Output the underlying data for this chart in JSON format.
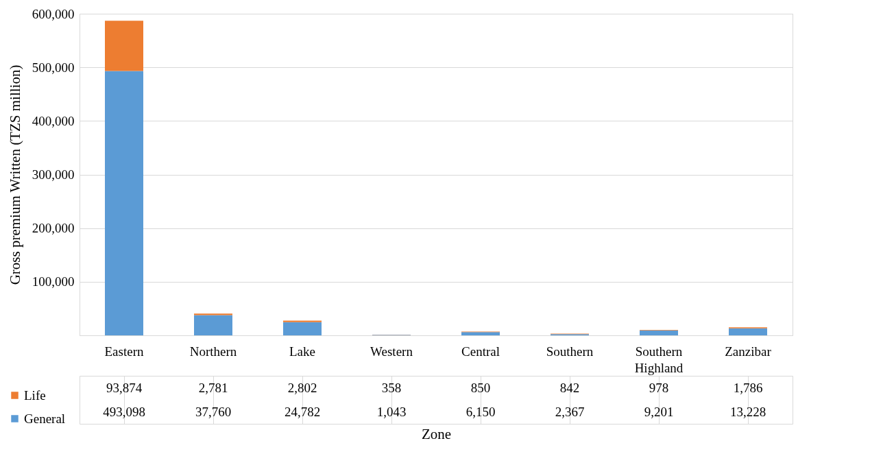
{
  "chart_data": {
    "type": "bar",
    "stacked": true,
    "xlabel": "Zone",
    "ylabel": "Gross premium Written (TZS million)",
    "categories": [
      "Eastern",
      "Northern",
      "Lake",
      "Western",
      "Central",
      "Southern",
      "Southern Highland",
      "Zanzibar"
    ],
    "series": [
      {
        "name": "General",
        "color": "#5b9bd5",
        "values": [
          493098,
          37760,
          24782,
          1043,
          6150,
          2367,
          9201,
          13228
        ],
        "value_labels": [
          "493,098",
          "37,760",
          "24,782",
          "1,043",
          "6,150",
          "2,367",
          "9,201",
          "13,228"
        ]
      },
      {
        "name": "Life",
        "color": "#ed7d31",
        "values": [
          93874,
          2781,
          2802,
          358,
          850,
          842,
          978,
          1786
        ],
        "value_labels": [
          "93,874",
          "2,781",
          "2,802",
          "358",
          "850",
          "842",
          "978",
          "1,786"
        ]
      }
    ],
    "ylim": [
      0,
      600000
    ],
    "yticks": [
      {
        "value": 100000,
        "label": "100,000"
      },
      {
        "value": 200000,
        "label": "200,000"
      },
      {
        "value": 300000,
        "label": "300,000"
      },
      {
        "value": 400000,
        "label": "400,000"
      },
      {
        "value": 500000,
        "label": "500,000"
      },
      {
        "value": 600000,
        "label": "600,000"
      }
    ],
    "grid": "y",
    "legend": "bottom left"
  }
}
